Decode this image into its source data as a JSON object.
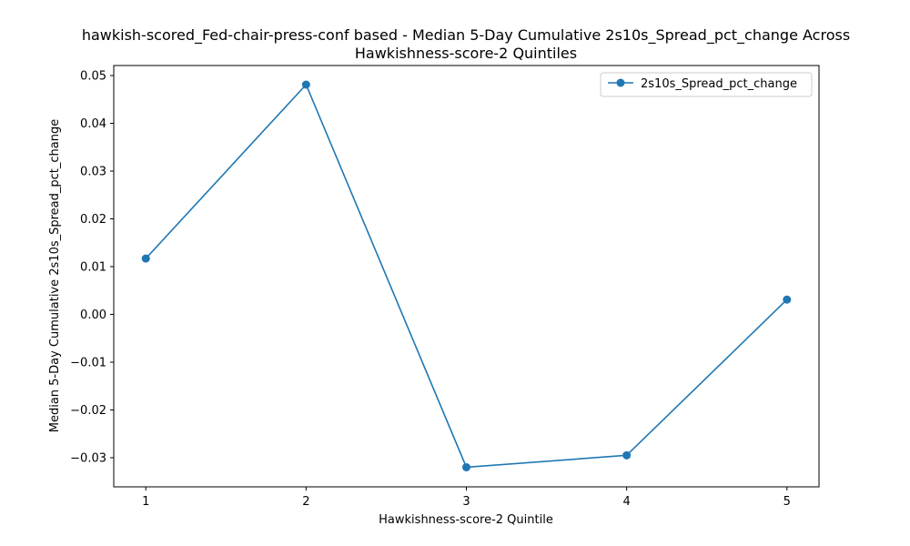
{
  "chart_data": {
    "type": "line",
    "title_lines": [
      "hawkish-scored_Fed-chair-press-conf based - Median 5-Day Cumulative 2s10s_Spread_pct_change Across",
      "Hawkishness-score-2 Quintiles"
    ],
    "xlabel": "Hawkishness-score-2 Quintile",
    "ylabel": "Median 5-Day Cumulative 2s10s_Spread_pct_change",
    "x": [
      1,
      2,
      3,
      4,
      5
    ],
    "x_tick_labels": [
      "1",
      "2",
      "3",
      "4",
      "5"
    ],
    "xlim": [
      0.8,
      5.2
    ],
    "ylim": [
      -0.0361,
      0.0521
    ],
    "y_ticks": [
      -0.03,
      -0.02,
      -0.01,
      0.0,
      0.01,
      0.02,
      0.03,
      0.04,
      0.05
    ],
    "y_tick_labels": [
      "−0.03",
      "−0.02",
      "−0.01",
      "0.00",
      "0.01",
      "0.02",
      "0.03",
      "0.04",
      "0.05"
    ],
    "grid": false,
    "legend_position": "top-right",
    "series": [
      {
        "name": "2s10s_Spread_pct_change",
        "color": "#1f77b4",
        "marker": "circle",
        "values": [
          0.0117,
          0.0481,
          -0.032,
          -0.0295,
          0.0031
        ]
      }
    ]
  }
}
